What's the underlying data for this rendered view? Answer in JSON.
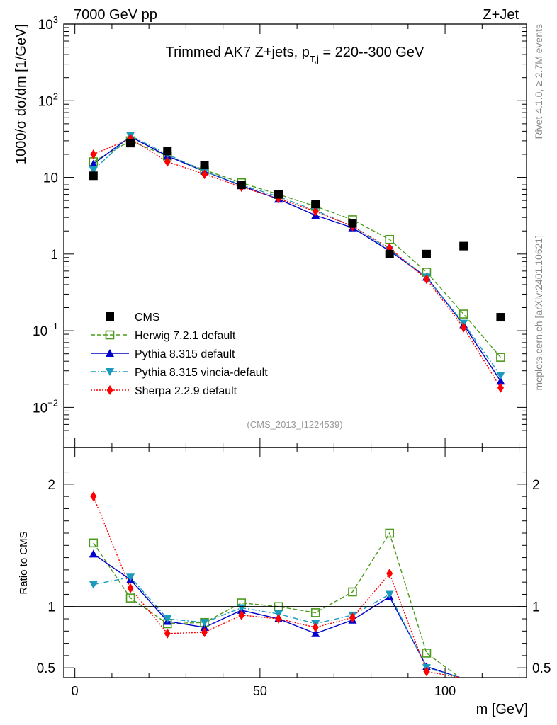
{
  "header": {
    "left": "7000 GeV pp",
    "right": "Z+Jet"
  },
  "chart_data": {
    "type": "line",
    "title": "Trimmed AK7 Z+jets, p_T,j = 220--300 GeV",
    "title_main": "Trimmed AK7 Z+jets, p",
    "title_sub": "T,j",
    "title_tail": " = 220--300 GeV",
    "xlabel": "m [GeV]",
    "ylabel": "1000/σ  dσ/dm [1/GeV]",
    "ratio_ylabel": "Ratio to CMS",
    "analysis_tag": "(CMS_2013_I1224539)",
    "side_label_top": "Rivet 4.1.0, ≥ 2.7M events",
    "side_label_bottom": "mcplots.cern.ch [arXiv:2401.10621]",
    "xlim": [
      -3,
      122
    ],
    "ylim_log": [
      0.003,
      1000
    ],
    "ratio_ylim": [
      0.42,
      2.3
    ],
    "x_ticks": [
      "0",
      "50",
      "100"
    ],
    "y_ticks_main": [
      {
        "base": "10",
        "exp": "3"
      },
      {
        "base": "10",
        "exp": "2"
      },
      {
        "base": "10",
        "exp": ""
      },
      {
        "base": "1",
        "exp": ""
      },
      {
        "base": "10",
        "exp": "−1"
      },
      {
        "base": "10",
        "exp": "−2"
      }
    ],
    "y_ticks_ratio": [
      "2",
      "1",
      "0.5"
    ],
    "x": [
      5,
      15,
      25,
      35,
      45,
      55,
      65,
      75,
      85,
      95,
      105,
      115
    ],
    "series": [
      {
        "name": "CMS",
        "color": "#000000",
        "marker": "square",
        "values": [
          10.5,
          28,
          22,
          14.5,
          8.0,
          6.0,
          4.5,
          2.5,
          1.0,
          1.0,
          1.27,
          0.15
        ],
        "ratio": [
          1,
          1,
          1,
          1,
          1,
          1,
          1,
          1,
          1,
          1,
          1,
          1
        ]
      },
      {
        "name": "Herwig 7.2.1 default",
        "color": "#4c9a1c",
        "marker": "open-square",
        "dash": "6,3",
        "values": [
          16,
          30,
          19,
          12.5,
          8.5,
          6.0,
          4.2,
          2.8,
          1.55,
          0.58,
          0.165,
          0.045
        ],
        "ratio": [
          1.52,
          1.07,
          0.86,
          0.87,
          1.03,
          1.0,
          0.95,
          1.12,
          1.6,
          0.62,
          null,
          null
        ]
      },
      {
        "name": "Pythia 8.315 default",
        "color": "#0000cc",
        "marker": "triangle-up",
        "values": [
          15,
          34,
          19,
          12,
          7.8,
          5.2,
          3.2,
          2.2,
          1.1,
          0.5,
          0.12,
          0.022
        ],
        "ratio": [
          1.43,
          1.22,
          0.88,
          0.83,
          0.97,
          0.9,
          0.78,
          0.89,
          1.08,
          0.51,
          null,
          null
        ]
      },
      {
        "name": "Pythia 8.315 vincia-default",
        "color": "#1a9bbd",
        "marker": "triangle-down",
        "dash": "7,3,2,3",
        "values": [
          12.5,
          35,
          20,
          12,
          8,
          5.6,
          3.7,
          2.3,
          1.15,
          0.5,
          0.125,
          0.026
        ],
        "ratio": [
          1.18,
          1.24,
          0.9,
          0.87,
          0.99,
          0.94,
          0.86,
          0.93,
          1.1,
          0.5,
          null,
          null
        ]
      },
      {
        "name": "Sherpa 2.2.9 default",
        "color": "#ff0000",
        "marker": "diamond",
        "dash": "2,2",
        "values": [
          20,
          32,
          16,
          11,
          7.5,
          5.3,
          3.6,
          2.3,
          1.2,
          0.47,
          0.11,
          0.018
        ],
        "ratio": [
          1.9,
          1.15,
          0.78,
          0.79,
          0.93,
          0.9,
          0.83,
          0.91,
          1.27,
          0.47,
          null,
          null
        ]
      }
    ]
  }
}
